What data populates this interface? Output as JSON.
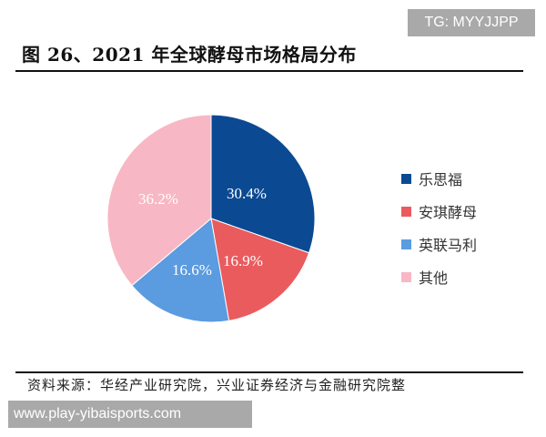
{
  "watermark_top": "TG: MYYJJPP",
  "title": "图 26、2021 年全球酵母市场格局分布",
  "source": "资料来源：华经产业研究院，兴业证券经济与金融研究院整",
  "watermark_bottom": "www.play-yibaisports.com",
  "legend": [
    {
      "label": "乐思福",
      "color": "#0b4a92"
    },
    {
      "label": "安琪酵母",
      "color": "#ea5b5e"
    },
    {
      "label": "英联马利",
      "color": "#5b9be0"
    },
    {
      "label": "其他",
      "color": "#f8b7c4"
    }
  ],
  "slices": [
    {
      "name": "乐思福",
      "value_label": "30.4%"
    },
    {
      "name": "安琪酵母",
      "value_label": "16.9%"
    },
    {
      "name": "英联马利",
      "value_label": "16.6%"
    },
    {
      "name": "其他",
      "value_label": "36.2%"
    }
  ],
  "chart_data": {
    "type": "pie",
    "title": "图 26、2021 年全球酵母市场格局分布",
    "categories": [
      "乐思福",
      "安琪酵母",
      "英联马利",
      "其他"
    ],
    "values": [
      30.4,
      16.9,
      16.6,
      36.2
    ],
    "unit": "%",
    "colors": [
      "#0b4a92",
      "#ea5b5e",
      "#5b9be0",
      "#f8b7c4"
    ],
    "start_angle": "12 o'clock",
    "direction": "clockwise",
    "data_labels": [
      "30.4%",
      "16.9%",
      "16.6%",
      "36.2%"
    ],
    "legend_position": "right",
    "source": "资料来源：华经产业研究院，兴业证券经济与金融研究院整"
  }
}
